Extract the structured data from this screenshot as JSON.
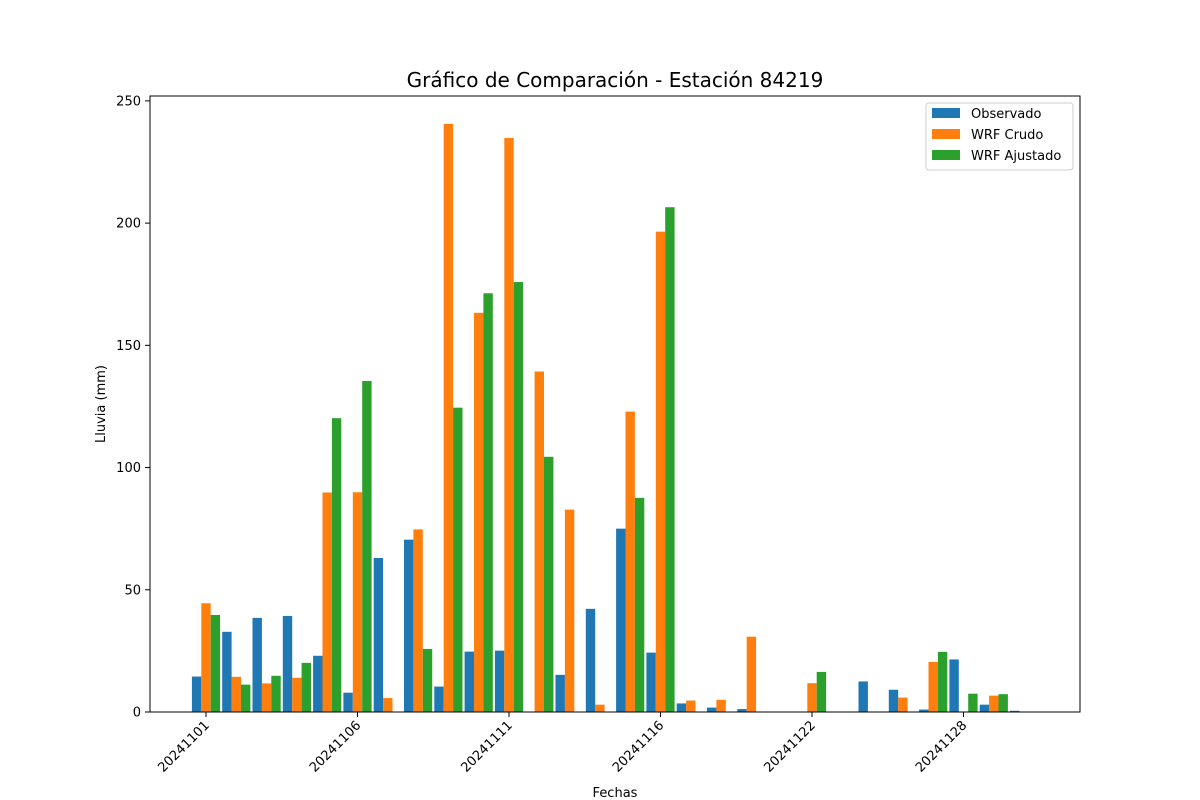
{
  "chart_data": {
    "type": "bar",
    "title": "Gráfico de Comparación - Estación 84219",
    "xlabel": "Fechas",
    "ylabel": "Lluvia (mm)",
    "ylim": [
      0,
      252
    ],
    "yticks": [
      0,
      50,
      100,
      150,
      200,
      250
    ],
    "x_tick_labels": [
      {
        "index": 0,
        "label": "20241101"
      },
      {
        "index": 5,
        "label": "20241106"
      },
      {
        "index": 10,
        "label": "20241111"
      },
      {
        "index": 15,
        "label": "20241116"
      },
      {
        "index": 20,
        "label": "20241122"
      },
      {
        "index": 25,
        "label": "20241128"
      }
    ],
    "legend_position": "top-right",
    "grid": false,
    "series": [
      {
        "name": "Observado",
        "color": "#1f77b4",
        "values": [
          14.5,
          32.8,
          38.5,
          39.3,
          23.0,
          7.9,
          63.0,
          70.5,
          10.4,
          24.7,
          25.1,
          0,
          15.2,
          42.2,
          75.0,
          24.3,
          3.5,
          1.8,
          1.2,
          0,
          0,
          0,
          12.5,
          9.1,
          1.0,
          21.5,
          3.0,
          0.5
        ]
      },
      {
        "name": "WRF Crudo",
        "color": "#ff7f0e",
        "values": [
          44.5,
          14.4,
          11.7,
          14.0,
          89.8,
          89.9,
          5.7,
          74.7,
          240.6,
          163.3,
          234.8,
          139.3,
          82.8,
          3.0,
          122.9,
          196.5,
          4.7,
          5.0,
          30.8,
          0,
          11.8,
          0,
          0,
          5.9,
          20.5,
          0,
          6.7,
          0
        ]
      },
      {
        "name": "WRF Ajustado",
        "color": "#2ca02c",
        "values": [
          39.7,
          11.2,
          14.8,
          20.1,
          120.2,
          135.4,
          0,
          25.8,
          124.5,
          171.3,
          175.9,
          104.4,
          0,
          0,
          87.6,
          206.5,
          0,
          0,
          0,
          0,
          16.4,
          0,
          0,
          0,
          24.6,
          7.5,
          7.3,
          0
        ]
      }
    ]
  }
}
